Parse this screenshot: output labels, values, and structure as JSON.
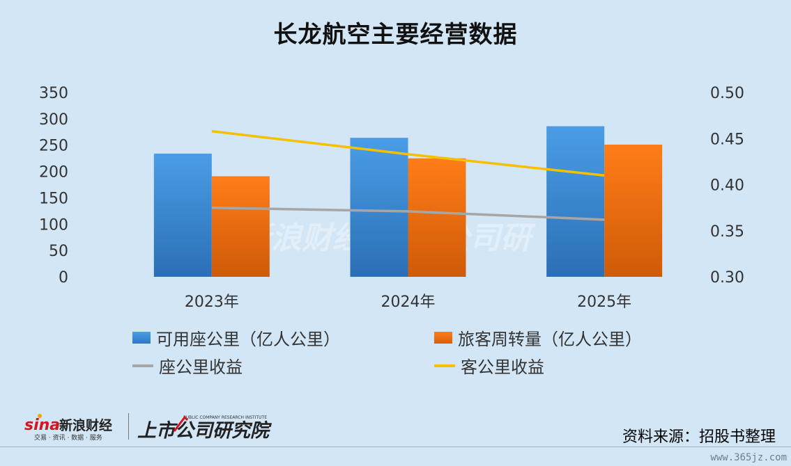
{
  "chart_data": {
    "type": "bar",
    "title": "长龙航空主要经营数据",
    "categories": [
      "2023年",
      "2024年",
      "2025年"
    ],
    "left_axis": {
      "ticks": [
        "0",
        "50",
        "100",
        "150",
        "200",
        "250",
        "300",
        "350"
      ],
      "ylim": [
        0,
        350
      ]
    },
    "right_axis": {
      "ticks": [
        "0.30",
        "0.35",
        "0.40",
        "0.45",
        "0.50"
      ],
      "ylim": [
        0.3,
        0.5
      ]
    },
    "series": [
      {
        "name": "可用座公里（亿人公里）",
        "kind": "bar",
        "axis": "left",
        "color": "#2e86d4",
        "values": [
          234,
          264,
          286
        ]
      },
      {
        "name": "旅客周转量（亿人公里）",
        "kind": "bar",
        "axis": "left",
        "color": "#ee6a0c",
        "values": [
          191,
          225,
          251
        ]
      },
      {
        "name": "座公里收益",
        "kind": "line",
        "axis": "right",
        "color": "#a6a6a6",
        "values": [
          0.375,
          0.371,
          0.362
        ]
      },
      {
        "name": "客公里收益",
        "kind": "line",
        "axis": "right",
        "color": "#f5c000",
        "values": [
          0.458,
          0.433,
          0.41
        ]
      }
    ],
    "grid": false,
    "legend_position": "bottom"
  },
  "footer": {
    "source": "资料来源：招股书整理",
    "sina_brand": "新浪财经",
    "sina_sub": "交易 · 资讯 · 数据 · 服务",
    "ssgs_brand": "上市公司研究院",
    "ssgs_sub": "PUBLIC COMPANY RESEARCH INSTITUTE",
    "url": "www.365jz.com"
  }
}
